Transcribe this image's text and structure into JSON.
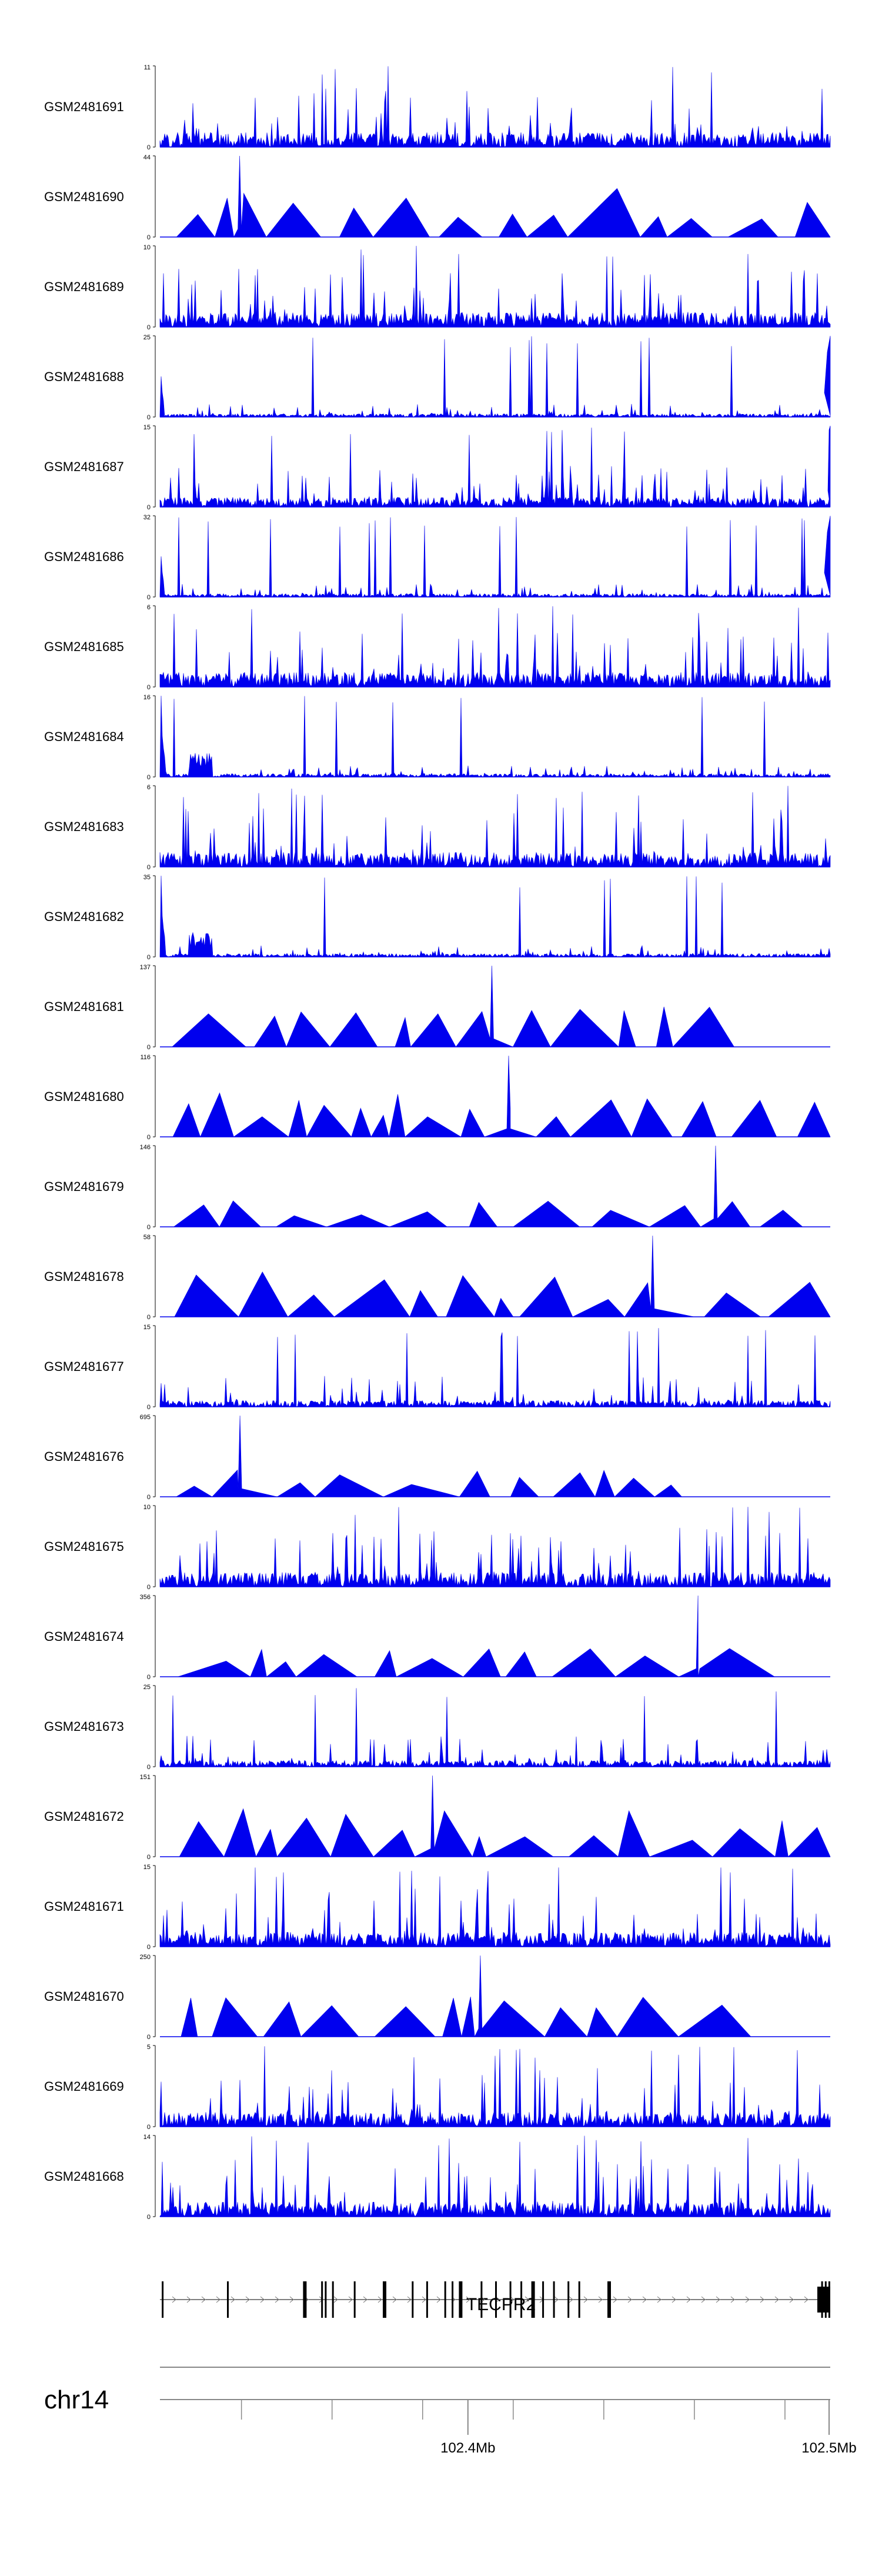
{
  "chart_data": {
    "type": "area",
    "title": "",
    "xlabel": "",
    "ylabel": "",
    "series_color": "#0000ee",
    "region": {
      "chromosome": "chr14",
      "start_mb": 102.315,
      "end_mb": 102.5
    },
    "tracks": [
      {
        "name": "GSM2481691",
        "ymax": "11",
        "ymin": "0",
        "profile": "dense"
      },
      {
        "name": "GSM2481690",
        "ymax": "44",
        "ymin": "0",
        "profile": "triangles"
      },
      {
        "name": "GSM2481689",
        "ymax": "10",
        "ymin": "0",
        "profile": "dense"
      },
      {
        "name": "GSM2481688",
        "ymax": "25",
        "ymin": "0",
        "profile": "edge-peaks"
      },
      {
        "name": "GSM2481687",
        "ymax": "15",
        "ymin": "0",
        "profile": "dense-right-peak"
      },
      {
        "name": "GSM2481686",
        "ymax": "32",
        "ymin": "0",
        "profile": "edge-peaks"
      },
      {
        "name": "GSM2481685",
        "ymax": "6",
        "ymin": "0",
        "profile": "dense"
      },
      {
        "name": "GSM2481684",
        "ymax": "16",
        "ymin": "0",
        "profile": "left-peak"
      },
      {
        "name": "GSM2481683",
        "ymax": "6",
        "ymin": "0",
        "profile": "dense"
      },
      {
        "name": "GSM2481682",
        "ymax": "35",
        "ymin": "0",
        "profile": "left-peak"
      },
      {
        "name": "GSM2481681",
        "ymax": "137",
        "ymin": "0",
        "profile": "big-triangles"
      },
      {
        "name": "GSM2481680",
        "ymax": "116",
        "ymin": "0",
        "profile": "triangles"
      },
      {
        "name": "GSM2481679",
        "ymax": "146",
        "ymin": "0",
        "profile": "sparse-triangles"
      },
      {
        "name": "GSM2481678",
        "ymax": "58",
        "ymin": "0",
        "profile": "triangles"
      },
      {
        "name": "GSM2481677",
        "ymax": "15",
        "ymin": "0",
        "profile": "dense-low"
      },
      {
        "name": "GSM2481676",
        "ymax": "695",
        "ymin": "0",
        "profile": "sparse-triangles"
      },
      {
        "name": "GSM2481675",
        "ymax": "10",
        "ymin": "0",
        "profile": "dense"
      },
      {
        "name": "GSM2481674",
        "ymax": "356",
        "ymin": "0",
        "profile": "sparse-triangles"
      },
      {
        "name": "GSM2481673",
        "ymax": "25",
        "ymin": "0",
        "profile": "dense-low"
      },
      {
        "name": "GSM2481672",
        "ymax": "151",
        "ymin": "0",
        "profile": "triangles"
      },
      {
        "name": "GSM2481671",
        "ymax": "15",
        "ymin": "0",
        "profile": "dense"
      },
      {
        "name": "GSM2481670",
        "ymax": "250",
        "ymin": "0",
        "profile": "big-triangles"
      },
      {
        "name": "GSM2481669",
        "ymax": "5",
        "ymin": "0",
        "profile": "dense"
      },
      {
        "name": "GSM2481668",
        "ymax": "14",
        "ymin": "0",
        "profile": "dense"
      }
    ],
    "gene": {
      "name": "TECPR2",
      "strand": "+",
      "exons_mb": [
        102.3155,
        102.3335,
        102.3545,
        102.3595,
        102.3605,
        102.3625,
        102.3685,
        102.3765,
        102.3845,
        102.3885,
        102.3935,
        102.3955,
        102.3975,
        102.4035,
        102.4075,
        102.4115,
        102.4145,
        102.4175,
        102.4205,
        102.4235,
        102.4275,
        102.4305,
        102.4385,
        102.4975,
        102.4985,
        102.4995,
        102.5
      ]
    },
    "axis": {
      "chromosome_label": "chr14",
      "tick_labels": [
        {
          "mb": 102.4,
          "label": "102.4Mb"
        },
        {
          "mb": 102.5,
          "label": "102.5Mb"
        }
      ],
      "minor_ticks_mb": [
        102.3375,
        102.3625,
        102.3875,
        102.4125,
        102.4375,
        102.4625,
        102.4875
      ]
    }
  }
}
